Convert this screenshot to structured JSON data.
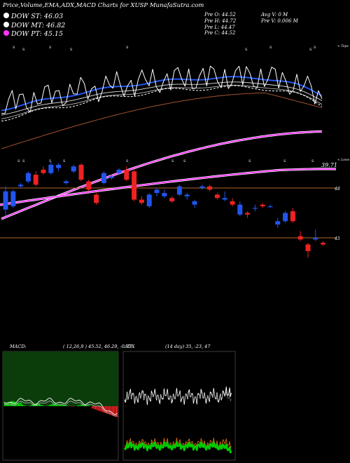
{
  "header": {
    "title": "Price,Volume,EMA,ADX,MACD Charts for XUSP MunafaSutra.com",
    "legend": [
      {
        "label": "DOW ST: 46.03",
        "color": "#ffffff"
      },
      {
        "label": "DOW MT: 46.82",
        "color": "#ffffff"
      },
      {
        "label": "DOW PT: 45.15",
        "color": "#ff33ff"
      }
    ],
    "ohlc": {
      "open": "Pre  O: 44.52",
      "high": "Pre  H: 44.72",
      "low": "Pre  L: 44.47",
      "close": "Pre  C: 44.52"
    },
    "volume": {
      "avg": "Avg V: 0  M",
      "prev": "Pre  V: 0.006  M"
    }
  },
  "ema_panel": {
    "upper_label": "< Tops",
    "lower_label": "< Lows",
    "low_price": "39.71"
  },
  "candle_panel": {
    "level_high": "48",
    "level_low": "45"
  },
  "macd": {
    "label": "MACD:",
    "params": "( 12,26,9 ) 45.52, 46.29, -0.77"
  },
  "adx": {
    "label": "ADX",
    "params": "(14  day) 35, -23, 47"
  },
  "colors": {
    "up": "#2255ee",
    "down": "#ee2222",
    "ema_fast": "#2255ee",
    "ema_slow": "#a0522d",
    "dow_pt": "#ff33ff",
    "macd_green": "#00dd00",
    "adx_white": "#ffffff",
    "adx_orange": "#cc6611",
    "adx_green": "#00cc00"
  },
  "chart_data": {
    "type": "candlestick",
    "y_levels": [
      48,
      45
    ],
    "ema_low_marker": 39.71,
    "candles": [
      {
        "o": 46.7,
        "c": 47.8,
        "h": 48.1,
        "l": 46.3
      },
      {
        "o": 46.9,
        "c": 47.8,
        "h": 47.9,
        "l": 46.8
      },
      {
        "o": 48.1,
        "c": 48.2,
        "h": 48.3,
        "l": 48.0
      },
      {
        "o": 48.4,
        "c": 48.9,
        "h": 49.0,
        "l": 48.3
      },
      {
        "o": 48.8,
        "c": 48.2,
        "h": 49.0,
        "l": 48.1
      },
      {
        "o": 49.1,
        "c": 48.9,
        "h": 49.3,
        "l": 48.8
      },
      {
        "o": 48.9,
        "c": 49.4,
        "h": 49.6,
        "l": 48.8
      },
      {
        "o": 49.2,
        "c": 49.4,
        "h": 49.5,
        "l": 49.0
      },
      {
        "o": 48.3,
        "c": 48.4,
        "h": 48.5,
        "l": 48.2
      },
      {
        "o": 49.0,
        "c": 49.3,
        "h": 49.4,
        "l": 48.9
      },
      {
        "o": 49.4,
        "c": 48.5,
        "h": 49.5,
        "l": 48.4
      },
      {
        "o": 48.4,
        "c": 47.9,
        "h": 48.5,
        "l": 47.8
      },
      {
        "o": 47.6,
        "c": 47.1,
        "h": 47.7,
        "l": 47.0
      },
      {
        "o": 48.3,
        "c": 48.9,
        "h": 49.0,
        "l": 48.2
      },
      {
        "o": 48.6,
        "c": 48.7,
        "h": 48.8,
        "l": 48.5
      },
      {
        "o": 48.9,
        "c": 49.1,
        "h": 49.2,
        "l": 48.8
      },
      {
        "o": 49.1,
        "c": 48.5,
        "h": 49.3,
        "l": 48.4
      },
      {
        "o": 49.0,
        "c": 47.3,
        "h": 49.1,
        "l": 47.2
      },
      {
        "o": 47.3,
        "c": 47.1,
        "h": 47.5,
        "l": 47.0
      },
      {
        "o": 46.9,
        "c": 47.6,
        "h": 47.7,
        "l": 46.8
      },
      {
        "o": 47.7,
        "c": 47.9,
        "h": 48.0,
        "l": 47.5
      },
      {
        "o": 47.5,
        "c": 47.7,
        "h": 47.9,
        "l": 47.4
      },
      {
        "o": 47.4,
        "c": 47.2,
        "h": 47.5,
        "l": 47.1
      },
      {
        "o": 47.6,
        "c": 48.1,
        "h": 48.2,
        "l": 47.5
      },
      {
        "o": 47.5,
        "c": 47.6,
        "h": 47.7,
        "l": 47.3
      },
      {
        "o": 47.0,
        "c": 47.2,
        "h": 47.3,
        "l": 46.8
      },
      {
        "o": 48.0,
        "c": 48.1,
        "h": 48.2,
        "l": 47.9
      },
      {
        "o": 48.1,
        "c": 47.9,
        "h": 48.2,
        "l": 47.8
      },
      {
        "o": 47.6,
        "c": 47.4,
        "h": 47.7,
        "l": 47.3
      },
      {
        "o": 47.3,
        "c": 47.4,
        "h": 47.8,
        "l": 47.2
      },
      {
        "o": 47.2,
        "c": 47.0,
        "h": 47.4,
        "l": 46.9
      },
      {
        "o": 46.4,
        "c": 47.0,
        "h": 47.2,
        "l": 46.3
      },
      {
        "o": 46.5,
        "c": 46.4,
        "h": 46.6,
        "l": 46.2
      },
      {
        "o": 46.8,
        "c": 46.8,
        "h": 47.0,
        "l": 46.6
      },
      {
        "o": 47.0,
        "c": 46.9,
        "h": 47.1,
        "l": 46.8
      },
      {
        "o": 46.9,
        "c": 46.9,
        "h": 47.0,
        "l": 46.8
      },
      {
        "o": 45.8,
        "c": 46.0,
        "h": 46.2,
        "l": 45.6
      },
      {
        "o": 46.0,
        "c": 46.5,
        "h": 46.6,
        "l": 45.9
      },
      {
        "o": 46.6,
        "c": 46.0,
        "h": 46.8,
        "l": 45.9
      },
      {
        "o": 45.1,
        "c": 44.9,
        "h": 45.4,
        "l": 44.8
      },
      {
        "o": 44.6,
        "c": 44.2,
        "h": 44.7,
        "l": 43.8
      },
      {
        "o": 44.9,
        "c": 45.0,
        "h": 45.5,
        "l": 44.8
      },
      {
        "o": 44.7,
        "c": 44.6,
        "h": 44.8,
        "l": 44.5
      }
    ]
  }
}
